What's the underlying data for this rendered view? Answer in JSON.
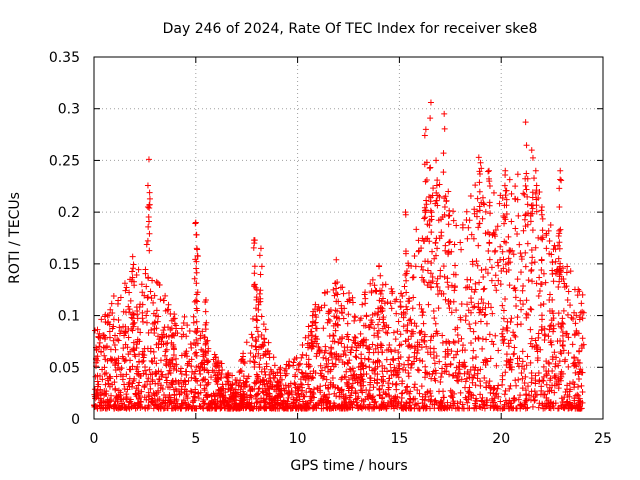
{
  "chart_data": {
    "type": "scatter",
    "title": "Day 246 of 2024, Rate Of TEC Index for receiver ske8",
    "xlabel": "GPS time / hours",
    "ylabel": "ROTI / TECUs",
    "xlim": [
      0,
      25
    ],
    "ylim": [
      0,
      0.35
    ],
    "xticks": [
      0,
      5,
      10,
      15,
      20,
      25
    ],
    "xtick_labels": [
      "0",
      "5",
      "10",
      "15",
      "20",
      "25"
    ],
    "yticks": [
      0,
      0.05,
      0.1,
      0.15,
      0.2,
      0.25,
      0.3,
      0.35
    ],
    "ytick_labels": [
      "0",
      "0.05",
      "0.1",
      "0.15",
      "0.2",
      "0.25",
      "0.3",
      "0.35"
    ],
    "grid": true,
    "marker": "+",
    "series": [
      {
        "name": "ROTI",
        "color": "#ff0000",
        "envelope": [
          {
            "x": 0,
            "ymin": 0.01,
            "ymax": 0.09
          },
          {
            "x": 1,
            "ymin": 0.01,
            "ymax": 0.12
          },
          {
            "x": 2,
            "ymin": 0.01,
            "ymax": 0.15
          },
          {
            "x": 3,
            "ymin": 0.01,
            "ymax": 0.14
          },
          {
            "x": 4,
            "ymin": 0.01,
            "ymax": 0.1
          },
          {
            "x": 5,
            "ymin": 0.01,
            "ymax": 0.1
          },
          {
            "x": 6,
            "ymin": 0.01,
            "ymax": 0.06
          },
          {
            "x": 7,
            "ymin": 0.01,
            "ymax": 0.04
          },
          {
            "x": 8,
            "ymin": 0.01,
            "ymax": 0.12
          },
          {
            "x": 9,
            "ymin": 0.01,
            "ymax": 0.05
          },
          {
            "x": 10,
            "ymin": 0.01,
            "ymax": 0.06
          },
          {
            "x": 11,
            "ymin": 0.01,
            "ymax": 0.12
          },
          {
            "x": 12,
            "ymin": 0.01,
            "ymax": 0.14
          },
          {
            "x": 13,
            "ymin": 0.01,
            "ymax": 0.11
          },
          {
            "x": 14,
            "ymin": 0.01,
            "ymax": 0.15
          },
          {
            "x": 15,
            "ymin": 0.01,
            "ymax": 0.12
          },
          {
            "x": 16,
            "ymin": 0.01,
            "ymax": 0.2
          },
          {
            "x": 17,
            "ymin": 0.01,
            "ymax": 0.24
          },
          {
            "x": 18,
            "ymin": 0.01,
            "ymax": 0.18
          },
          {
            "x": 19,
            "ymin": 0.01,
            "ymax": 0.25
          },
          {
            "x": 20,
            "ymin": 0.01,
            "ymax": 0.22
          },
          {
            "x": 21,
            "ymin": 0.01,
            "ymax": 0.26
          },
          {
            "x": 22,
            "ymin": 0.01,
            "ymax": 0.22
          },
          {
            "x": 23,
            "ymin": 0.01,
            "ymax": 0.16
          },
          {
            "x": 24,
            "ymin": 0.01,
            "ymax": 0.12
          }
        ],
        "peaks": [
          {
            "x": 2.7,
            "y": 0.251
          },
          {
            "x": 2.65,
            "y": 0.205
          },
          {
            "x": 1.9,
            "y": 0.157
          },
          {
            "x": 5.0,
            "y": 0.19
          },
          {
            "x": 5.05,
            "y": 0.165
          },
          {
            "x": 5.5,
            "y": 0.115
          },
          {
            "x": 7.9,
            "y": 0.173
          },
          {
            "x": 8.2,
            "y": 0.165
          },
          {
            "x": 8.0,
            "y": 0.125
          },
          {
            "x": 11.9,
            "y": 0.154
          },
          {
            "x": 14.0,
            "y": 0.148
          },
          {
            "x": 15.3,
            "y": 0.2
          },
          {
            "x": 16.3,
            "y": 0.28
          },
          {
            "x": 16.55,
            "y": 0.306
          },
          {
            "x": 16.8,
            "y": 0.25
          },
          {
            "x": 17.2,
            "y": 0.295
          },
          {
            "x": 17.4,
            "y": 0.22
          },
          {
            "x": 18.9,
            "y": 0.253
          },
          {
            "x": 19.4,
            "y": 0.24
          },
          {
            "x": 20.2,
            "y": 0.24
          },
          {
            "x": 21.2,
            "y": 0.287
          },
          {
            "x": 21.5,
            "y": 0.26
          },
          {
            "x": 21.7,
            "y": 0.24
          },
          {
            "x": 22.0,
            "y": 0.205
          },
          {
            "x": 22.9,
            "y": 0.24
          },
          {
            "x": 22.85,
            "y": 0.223
          },
          {
            "x": 24.0,
            "y": 0.12
          }
        ]
      }
    ]
  }
}
